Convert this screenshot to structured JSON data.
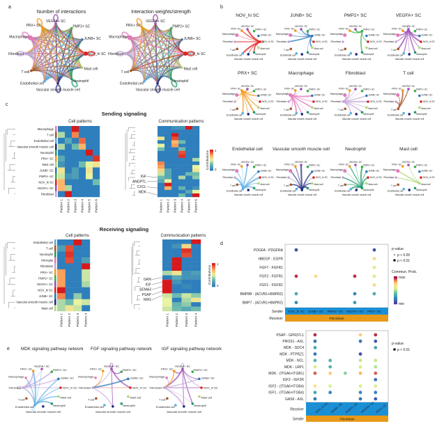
{
  "panel_labels": {
    "a": "a",
    "b": "b",
    "c": "c",
    "d": "d",
    "e": "e"
  },
  "colors": {
    "VEGFA+ SC": "#9b4fb5",
    "PMP2+ SC": "#3cae4a",
    "JUNB+ SC": "#2a78b8",
    "NOV_hi SC": "#e0221f",
    "Mast cell": "#b3d67a",
    "Neutrophil": "#1f9a6c",
    "Vascular smooth muscle cell": "#232b7d",
    "Endothelial cell": "#5aaee3",
    "T cell": "#a5582a",
    "Fibroblast": "#c6a6d8",
    "Macrophage": "#e27bbd",
    "PRX+ SC": "#f39a1c",
    "sender_bar": "#1b8fd6",
    "receiver_bar": "#e89a18",
    "sender_text": "#1b8fd6",
    "receiver_text": "#e2541f"
  },
  "cell_types": [
    "VEGFA+ SC",
    "PMP2+ SC",
    "JUNB+ SC",
    "NOV_hi SC",
    "Mast cell",
    "Neutrophil",
    "Vascular smooth muscle cell",
    "Endothelial cell",
    "T cell",
    "Fibroblast",
    "Macrophage",
    "PRX+ SC"
  ],
  "panel_a": {
    "titles": [
      "Number of interactions",
      "Interaction weights/strength"
    ]
  },
  "panel_b": {
    "networks": [
      {
        "sender": "NOV_hi SC",
        "targets": [
          "Macrophage",
          "Fibroblast",
          "Endothelial cell",
          "Vascular smooth muscle cell",
          "Neutrophil",
          "Mast cell",
          "PRX+ SC",
          "VEGFA+ SC",
          "NOV_hi SC"
        ]
      },
      {
        "sender": "JUNB+ SC",
        "targets": [
          "Macrophage",
          "Fibroblast",
          "PRX+ SC",
          "VEGFA+ SC",
          "PMP2+ SC",
          "NOV_hi SC",
          "Mast cell",
          "Neutrophil"
        ]
      },
      {
        "sender": "PMP2+ SC",
        "targets": [
          "PRX+ SC",
          "VEGFA+ SC",
          "NOV_hi SC",
          "Neutrophil"
        ]
      },
      {
        "sender": "VEGFA+ SC",
        "targets": [
          "PRX+ SC",
          "PMP2+ SC",
          "JUNB+ SC",
          "NOV_hi SC",
          "Mast cell",
          "Neutrophil",
          "Vascular smooth muscle cell",
          "Endothelial cell",
          "T cell",
          "Fibroblast",
          "Macrophage",
          "VEGFA+ SC"
        ]
      },
      {
        "sender": "PRX+ SC",
        "targets": [
          "VEGFA+ SC",
          "PMP2+ SC",
          "JUNB+ SC",
          "NOV_hi SC",
          "Mast cell",
          "Neutrophil",
          "Vascular smooth muscle cell",
          "Endothelial cell",
          "Fibroblast",
          "Macrophage"
        ]
      },
      {
        "sender": "Macrophage",
        "targets": [
          "VEGFA+ SC",
          "PRX+ SC",
          "JUNB+ SC",
          "NOV_hi SC",
          "Mast cell",
          "Neutrophil",
          "Vascular smooth muscle cell",
          "Endothelial cell",
          "T cell",
          "Fibroblast",
          "Macrophage"
        ]
      },
      {
        "sender": "Fibroblast",
        "targets": [
          "VEGFA+ SC",
          "PRX+ SC",
          "PMP2+ SC",
          "JUNB+ SC",
          "NOV_hi SC",
          "Mast cell",
          "Neutrophil",
          "Vascular smooth muscle cell",
          "Endothelial cell",
          "Macrophage"
        ]
      },
      {
        "sender": "T cell",
        "targets": [
          "VEGFA+ SC",
          "PRX+ SC",
          "Macrophage",
          "Fibroblast"
        ]
      },
      {
        "sender": "Endothelial cell",
        "targets": [
          "VEGFA+ SC",
          "PRX+ SC",
          "JUNB+ SC",
          "NOV_hi SC",
          "Mast cell",
          "Neutrophil",
          "Vascular smooth muscle cell",
          "T cell",
          "Fibroblast",
          "Macrophage"
        ]
      },
      {
        "sender": "Vascular smooth muscle cell",
        "targets": [
          "VEGFA+ SC",
          "PRX+ SC",
          "JUNB+ SC",
          "NOV_hi SC",
          "Mast cell",
          "Neutrophil",
          "Endothelial cell",
          "T cell",
          "Fibroblast",
          "Macrophage"
        ]
      },
      {
        "sender": "Neutrophil",
        "targets": [
          "VEGFA+ SC",
          "PRX+ SC",
          "PMP2+ SC",
          "JUNB+ SC",
          "NOV_hi SC",
          "Mast cell",
          "Vascular smooth muscle cell",
          "Endothelial cell",
          "T cell",
          "Fibroblast",
          "Macrophage"
        ]
      },
      {
        "sender": "Mast cell",
        "targets": [
          "VEGFA+ SC",
          "Macrophage",
          "NOV_hi SC",
          "Fibroblast"
        ]
      }
    ]
  },
  "panel_c": {
    "sending_title": "Sending signaling",
    "receiving_title": "Receiving signaling",
    "cell_patterns_title": "Cell patterns",
    "communication_patterns_title": "Communication patterns",
    "colorbar_label": "Contributions",
    "colorbar_ticks": [
      "0",
      "1"
    ],
    "sending_cell": {
      "rows": [
        "Macrophage",
        "T cell",
        "Endothelial cell",
        "Vascular smooth muscle cell",
        "Neutrophil",
        "PRX+ SC",
        "Mast cell",
        "JUNB+ SC",
        "PMP2+ SC",
        "NOV_hi SC",
        "VEGFA+ SC",
        "Fibroblast"
      ],
      "columns": [
        "Pattern 1",
        "Pattern 2",
        "Pattern 3",
        "Pattern 4",
        "Pattern 5",
        "Pattern 6"
      ],
      "values": [
        [
          0,
          0,
          1,
          0,
          0,
          0
        ],
        [
          0.4,
          0,
          0.8,
          0,
          0,
          0
        ],
        [
          0,
          0.2,
          0,
          0.85,
          0,
          0
        ],
        [
          0.4,
          0,
          0.3,
          0.7,
          0,
          0
        ],
        [
          0,
          0,
          0,
          0,
          1,
          0
        ],
        [
          0.2,
          0,
          0,
          0,
          0,
          0.95
        ],
        [
          0.1,
          0,
          0,
          0.3,
          0.5,
          0.55
        ],
        [
          0.55,
          0,
          0.15,
          0,
          0.55,
          0
        ],
        [
          0.45,
          0.1,
          0.15,
          0,
          0.5,
          0
        ],
        [
          0.7,
          0,
          0,
          0,
          0,
          0.3
        ],
        [
          0.7,
          0.4,
          0,
          0,
          0,
          0
        ],
        [
          0,
          1,
          0,
          0,
          0,
          0
        ]
      ]
    },
    "sending_comm": {
      "columns": [
        "Pattern 1",
        "Pattern 2",
        "Pattern 3",
        "Pattern 4",
        "Pattern 5",
        "Pattern 6"
      ],
      "labels": [
        {
          "row": 14,
          "text": "IGF"
        },
        {
          "row": 15,
          "text": "ANGPTL"
        },
        {
          "row": 17,
          "text": "CXCL"
        },
        {
          "row": 19,
          "text": "MDK"
        }
      ],
      "values": [
        [
          0,
          0,
          0.1,
          0.1,
          1,
          0
        ],
        [
          0,
          0,
          0,
          0,
          0,
          0
        ],
        [
          0,
          0,
          1,
          0,
          0,
          0
        ],
        [
          0.55,
          0,
          0.9,
          0,
          0,
          0
        ],
        [
          0,
          0,
          0.7,
          0.3,
          0,
          0
        ],
        [
          0.5,
          0,
          0.75,
          0,
          0,
          0
        ],
        [
          0.3,
          0,
          0,
          0.3,
          0,
          0
        ],
        [
          0,
          0,
          0,
          0.9,
          0,
          0
        ],
        [
          0,
          0,
          0,
          0.95,
          0,
          0
        ],
        [
          0,
          0,
          0,
          0,
          0,
          0.4
        ],
        [
          0.8,
          0,
          0,
          0,
          0,
          0
        ],
        [
          0.75,
          0,
          0,
          0,
          0,
          0.5
        ],
        [
          0.6,
          0.2,
          0,
          0,
          0,
          0.55
        ],
        [
          0.45,
          0.2,
          0,
          0,
          0.3,
          0.3
        ],
        [
          0.3,
          0.2,
          0,
          0.4,
          0,
          0.35
        ],
        [
          0.2,
          0.5,
          0,
          0,
          0,
          0
        ],
        [
          0,
          1,
          0,
          0,
          0,
          0
        ],
        [
          0,
          0.7,
          0,
          0.25,
          0,
          0.1
        ],
        [
          0,
          0,
          0,
          0,
          0.2,
          0.5
        ],
        [
          0,
          0,
          0,
          0.3,
          0,
          1
        ]
      ]
    },
    "receiving_cell": {
      "rows": [
        "Endothelial cell",
        "T cell",
        "Neutrophil",
        "Microglia",
        "Fibroblast",
        "PRX+ SC",
        "PMP2+ SC",
        "VEGFA+ SC",
        "NOV_hi SC",
        "JUNB+ SC",
        "Vascular smooth muscle cell",
        "Mast cell"
      ],
      "columns": [
        "Pattern 1",
        "Pattern 2",
        "Pattern 3",
        "Pattern 4"
      ],
      "values": [
        [
          0,
          0,
          1,
          0
        ],
        [
          0.15,
          0.9,
          0,
          0
        ],
        [
          0,
          0.95,
          0,
          0
        ],
        [
          0,
          0.9,
          0,
          0.15
        ],
        [
          0,
          0,
          0,
          1
        ],
        [
          0.75,
          0,
          0,
          0.45
        ],
        [
          0.75,
          0,
          0,
          0.45
        ],
        [
          0.75,
          0,
          0,
          0.4
        ],
        [
          1,
          0,
          0,
          0
        ],
        [
          0.8,
          0,
          0.35,
          0
        ],
        [
          0.4,
          0.3,
          0.5,
          0.45
        ],
        [
          0.4,
          0.55,
          0.45,
          0
        ]
      ]
    },
    "receiving_comm": {
      "columns": [
        "Pattern 1",
        "Pattern 2",
        "Pattern 3",
        "Pattern 4"
      ],
      "labels": [
        {
          "row": 8,
          "text": "GRN"
        },
        {
          "row": 9,
          "text": "IGF"
        },
        {
          "row": 10,
          "text": "SEMA3"
        },
        {
          "row": 11,
          "text": "PSAP"
        },
        {
          "row": 12,
          "text": "NRG"
        }
      ],
      "values": [
        [
          0,
          0,
          0,
          1
        ],
        [
          0,
          0.1,
          0.6,
          0
        ],
        [
          0,
          0,
          0.95,
          0
        ],
        [
          0,
          0,
          0.9,
          0
        ],
        [
          0,
          1,
          0,
          0
        ],
        [
          0,
          1,
          0,
          0
        ],
        [
          0,
          1,
          0,
          0
        ],
        [
          0.4,
          0.55,
          0.1,
          0.15
        ],
        [
          0,
          0.2,
          0.1,
          0.1
        ],
        [
          1,
          0.1,
          0,
          0
        ],
        [
          1,
          0,
          0.05,
          0
        ],
        [
          1,
          0,
          0,
          0
        ],
        [
          0.45,
          0.3,
          0.45,
          0.35
        ],
        [
          0.5,
          0,
          0.4,
          0.55
        ],
        [
          0.5,
          0.25,
          0.35,
          0
        ],
        [
          0.45,
          0.3,
          0.2,
          0.3
        ]
      ]
    }
  },
  "panel_d": {
    "sender_label": "Sender",
    "receiver_label": "Receiver",
    "legend_pvalue_title": "p-value",
    "legend_commun_title": "Commun. Prob.",
    "legend_max": "max",
    "legend_min": "min",
    "top": {
      "rows": [
        "PDGFA - PDGFRA",
        "HBEGF - EGFR",
        "FGF7 - FGFR1",
        "FGF2 - FGFR1",
        "FGF1 - FGFR1",
        "BMP8B - (ACVR1+BMPR2)",
        "BMP7 - (ACVR1+BMPR2)"
      ],
      "columns": [
        "NOV_hi SC",
        "JUNB+ SC",
        "PMP2+ SC",
        "VEGFA+ SC",
        "PRX+ SC"
      ],
      "group": "Fibroblast",
      "pvalue_legend": [
        "p > 0.05",
        "p < 0.01"
      ],
      "values": [
        [
          0.05,
          null,
          null,
          null,
          0.05
        ],
        [
          null,
          null,
          null,
          null,
          0.72
        ],
        [
          null,
          null,
          null,
          null,
          0.58
        ],
        [
          0.95,
          0.72,
          null,
          0.95,
          0.62
        ],
        [
          null,
          null,
          null,
          null,
          0.72
        ],
        [
          0.32,
          null,
          null,
          0.2,
          0.32
        ],
        [
          0.2,
          null,
          null,
          0.25,
          null
        ]
      ]
    },
    "bottom": {
      "rows": [
        "PSAP - GPR37L1",
        "PROS1 - AXL",
        "MDK - SDC4",
        "MDK - PTPRZ1",
        "MDK - NCL",
        "MDK - LRP1",
        "MDK - (ITGA6+ITGB1)",
        "IGF2 - IGF2R",
        "IGF2 - (ITGA6+ITGB4)",
        "IGF1 - (ITGA6+ITGB4)",
        "GAS6 - AXL"
      ],
      "columns": [
        "NOV_hi SC",
        "JUNB+ SC",
        "PMP2+ SC",
        "VEGFA+ SC",
        "PRX+ SC"
      ],
      "group": "Fibroblast",
      "pvalue_legend": [
        "p < 0.01"
      ],
      "values": [
        [
          0.95,
          null,
          null,
          0.75,
          0.95
        ],
        [
          0.15,
          null,
          null,
          0.15,
          0.08
        ],
        [
          0.3,
          null,
          null,
          null,
          0.3
        ],
        [
          0.15,
          null,
          null,
          0.05,
          null
        ],
        [
          0.35,
          0.35,
          null,
          0.52,
          0.52
        ],
        [
          0.55,
          0.35,
          null,
          0.55,
          0.5
        ],
        [
          0.9,
          0.75,
          0.45,
          0.8,
          0.9
        ],
        [
          null,
          null,
          null,
          null,
          0.15
        ],
        [
          0.7,
          0.55,
          null,
          0.55,
          0.55
        ],
        [
          0.3,
          0.2,
          null,
          0.2,
          0.2
        ],
        [
          0.15,
          null,
          null,
          0.15,
          0.08
        ]
      ]
    }
  },
  "panel_e": {
    "networks": [
      {
        "title": "MDK signaling pathway network",
        "edges": [
          [
            "Fibroblast",
            "VEGFA+ SC"
          ],
          [
            "Fibroblast",
            "PMP2+ SC"
          ],
          [
            "Fibroblast",
            "JUNB+ SC"
          ],
          [
            "Fibroblast",
            "NOV_hi SC"
          ],
          [
            "Fibroblast",
            "Macrophage"
          ],
          [
            "Fibroblast",
            "PRX+ SC"
          ],
          [
            "Fibroblast",
            "Endothelial cell"
          ],
          [
            "Fibroblast",
            "Fibroblast"
          ],
          [
            "Endothelial cell",
            "VEGFA+ SC"
          ],
          [
            "Endothelial cell",
            "PRX+ SC"
          ],
          [
            "Endothelial cell",
            "JUNB+ SC"
          ],
          [
            "Endothelial cell",
            "NOV_hi SC"
          ],
          [
            "Endothelial cell",
            "Fibroblast"
          ],
          [
            "Endothelial cell",
            "Neutrophil"
          ],
          [
            "Endothelial cell",
            "Mast cell"
          ],
          [
            "Endothelial cell",
            "Macrophage"
          ],
          [
            "Endothelial cell",
            "Endothelial cell"
          ]
        ]
      },
      {
        "title": "FGF signaling pathway network",
        "edges": [
          [
            "PRX+ SC",
            "Fibroblast"
          ],
          [
            "VEGFA+ SC",
            "Fibroblast"
          ],
          [
            "VEGFA+ SC",
            "NOV_hi SC"
          ],
          [
            "VEGFA+ SC",
            "PMP2+ SC"
          ],
          [
            "VEGFA+ SC",
            "VEGFA+ SC"
          ],
          [
            "NOV_hi SC",
            "Fibroblast"
          ],
          [
            "JUNB+ SC",
            "Fibroblast"
          ],
          [
            "Fibroblast",
            "Vascular smooth muscle cell"
          ],
          [
            "VEGFA+ SC",
            "Vascular smooth muscle cell"
          ]
        ]
      },
      {
        "title": "IGF signaling pathway network",
        "edges": [
          [
            "VEGFA+ SC",
            "PRX+ SC"
          ],
          [
            "VEGFA+ SC",
            "JUNB+ SC"
          ],
          [
            "VEGFA+ SC",
            "NOV_hi SC"
          ],
          [
            "VEGFA+ SC",
            "Fibroblast"
          ],
          [
            "VEGFA+ SC",
            "Neutrophil"
          ],
          [
            "VEGFA+ SC",
            "Vascular smooth muscle cell"
          ],
          [
            "VEGFA+ SC",
            "VEGFA+ SC"
          ],
          [
            "Fibroblast",
            "NOV_hi SC"
          ],
          [
            "Fibroblast",
            "JUNB+ SC"
          ],
          [
            "Fibroblast",
            "Macrophage"
          ],
          [
            "Fibroblast",
            "Neutrophil"
          ],
          [
            "Fibroblast",
            "Vascular smooth muscle cell"
          ],
          [
            "PRX+ SC",
            "Fibroblast"
          ]
        ]
      }
    ]
  }
}
